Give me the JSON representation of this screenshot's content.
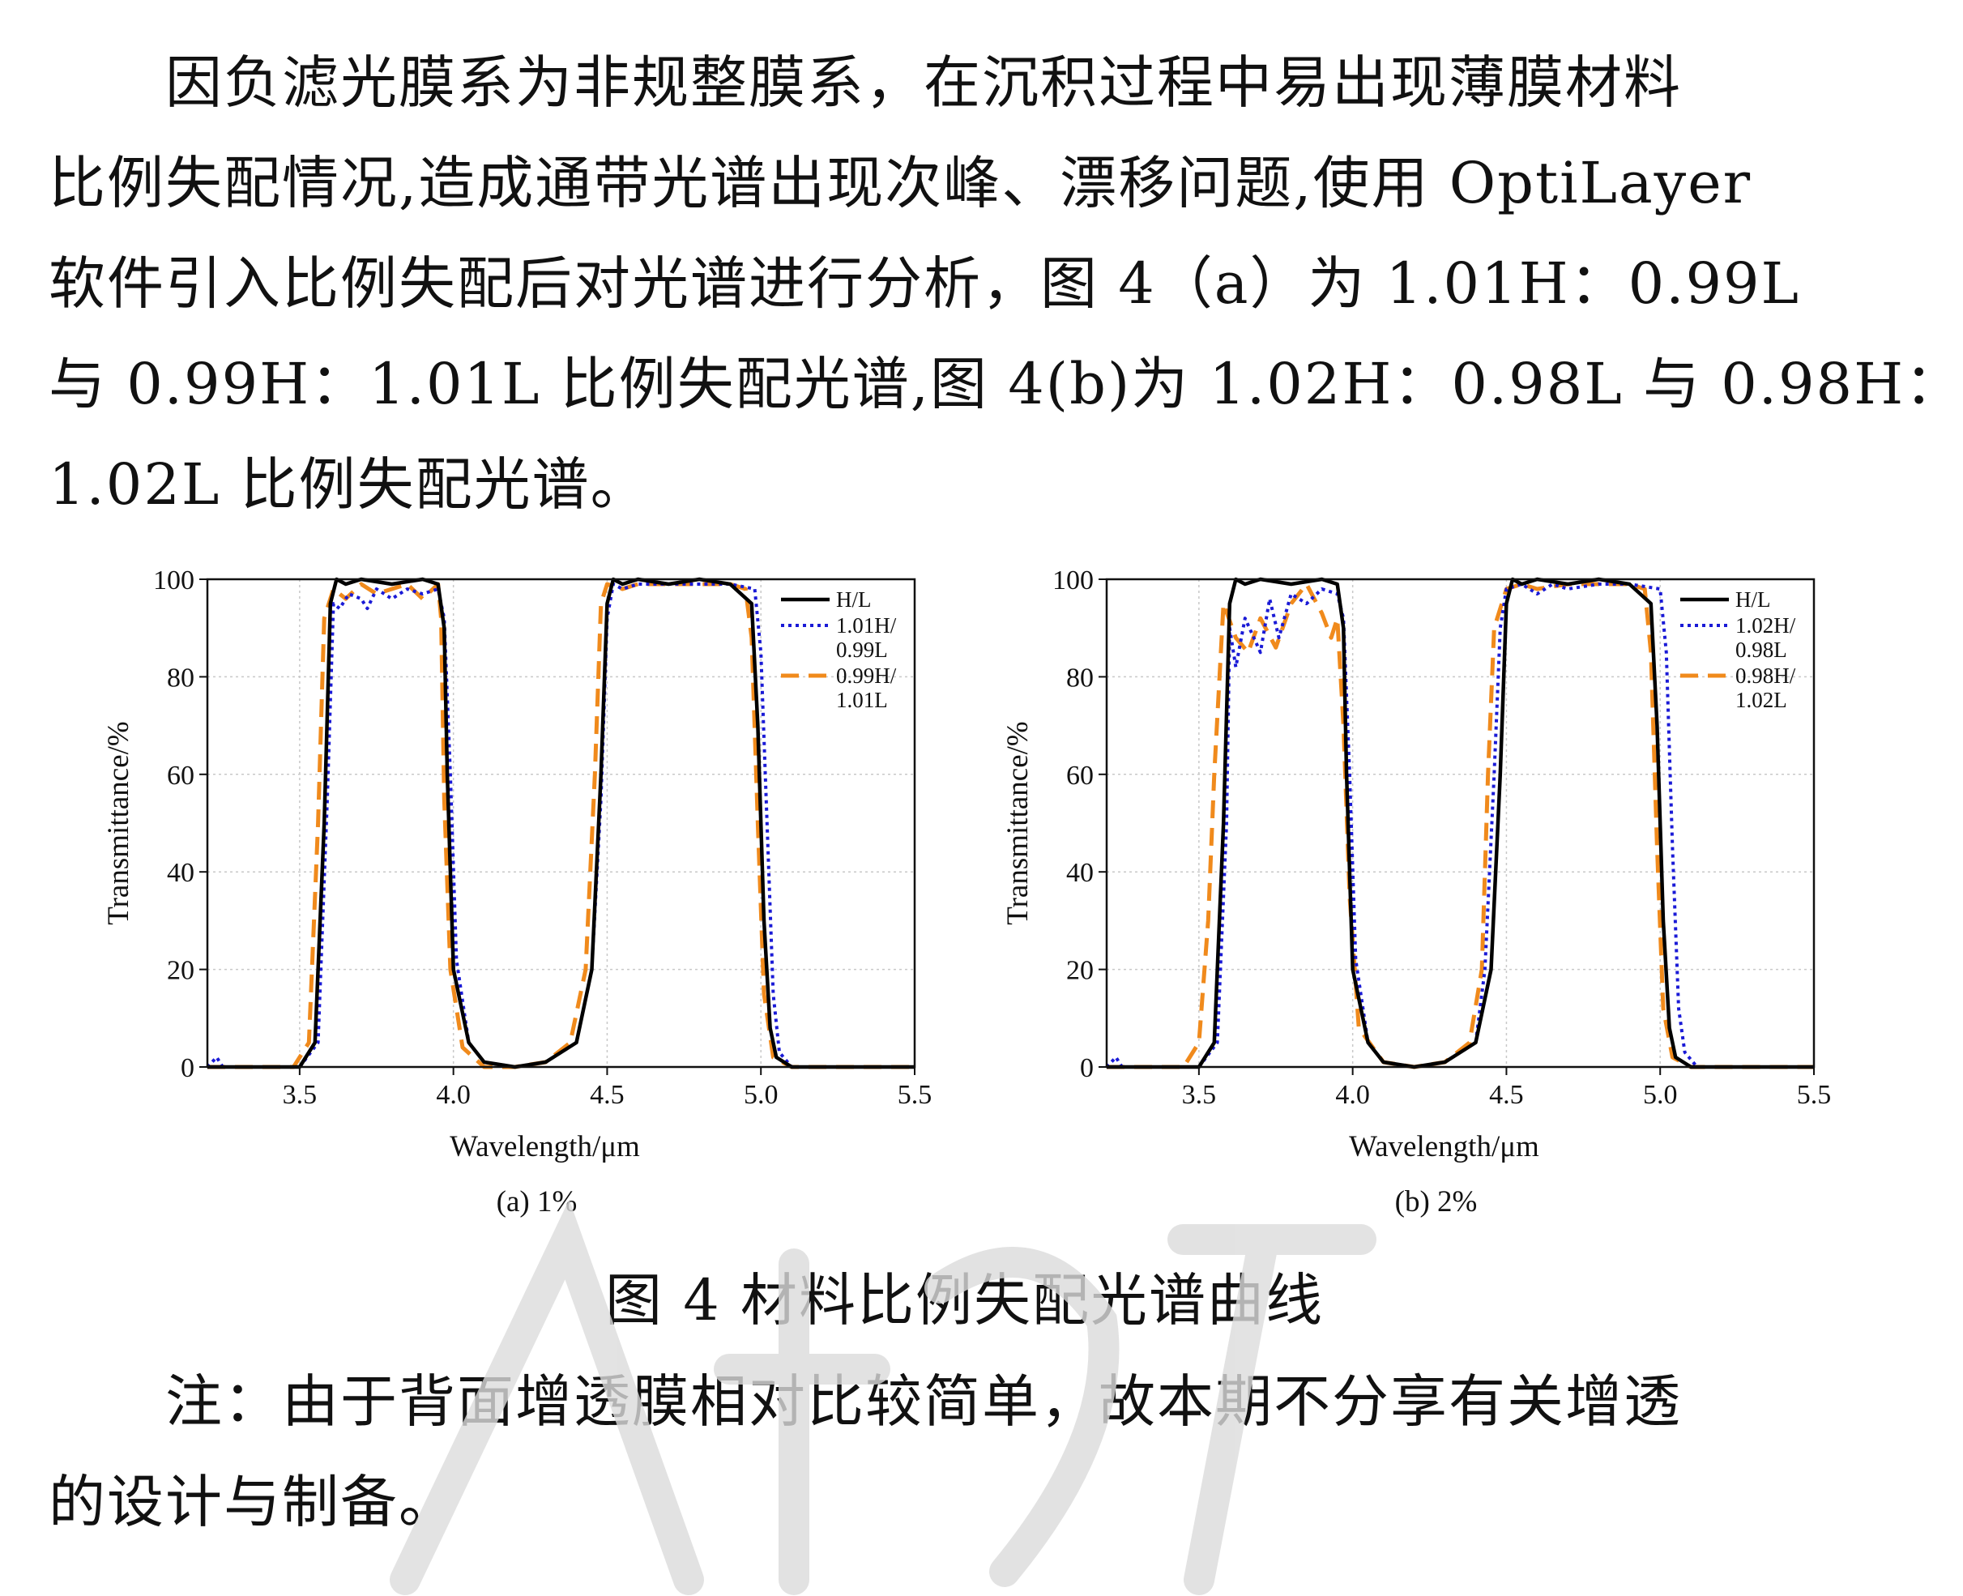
{
  "paragraph1": {
    "lines": [
      "因负滤光膜系为非规整膜系，在沉积过程中易出现薄膜材料",
      "比例失配情况,造成通带光谱出现次峰、漂移问题,使用 OptiLayer",
      "软件引入比例失配后对光谱进行分析，图 4（a）为 1.01H：0.99L",
      "与 0.99H：1.01L 比例失配光谱,图 4(b)为 1.02H：0.98L 与 0.98H：",
      "1.02L 比例失配光谱。"
    ]
  },
  "figure_caption": "图 4  材料比例失配光谱曲线",
  "paragraph2": {
    "lines": [
      "注：由于背面增透膜相对比较简单，故本期不分享有关增透",
      "的设计与制备。"
    ]
  },
  "colors": {
    "hl": "#000000",
    "dotted": "#1a1ad6",
    "dashed": "#f08a1c",
    "grid": "#c8c8c8"
  },
  "chart_data": [
    {
      "type": "line",
      "subtitle": "(a) 1%",
      "xlabel": "Wavelength/μm",
      "ylabel": "Transmittance/%",
      "xlim": [
        3.2,
        5.5
      ],
      "ylim": [
        0,
        100
      ],
      "xticks": [
        "3.5",
        "4.0",
        "4.5",
        "5.0",
        "5.5"
      ],
      "yticks": [
        "0",
        "20",
        "40",
        "60",
        "80",
        "100"
      ],
      "grid": true,
      "legend_position": "top-right",
      "series": [
        {
          "name": "H/L",
          "style": "solid",
          "x": [
            3.2,
            3.5,
            3.55,
            3.58,
            3.6,
            3.62,
            3.65,
            3.7,
            3.8,
            3.9,
            3.95,
            3.97,
            3.98,
            4.0,
            4.05,
            4.1,
            4.2,
            4.3,
            4.4,
            4.45,
            4.48,
            4.5,
            4.52,
            4.55,
            4.6,
            4.7,
            4.8,
            4.9,
            4.97,
            4.99,
            5.01,
            5.03,
            5.05,
            5.1,
            5.2,
            5.3,
            5.5
          ],
          "y": [
            0,
            0,
            5,
            50,
            95,
            100,
            99,
            100,
            99,
            100,
            99,
            90,
            60,
            20,
            5,
            1,
            0,
            1,
            5,
            20,
            60,
            95,
            100,
            99,
            100,
            99,
            100,
            99,
            95,
            70,
            30,
            8,
            2,
            0,
            0,
            0,
            0
          ]
        },
        {
          "name": "1.01H/\n0.99L",
          "style": "dotted",
          "x": [
            3.2,
            3.23,
            3.25,
            3.5,
            3.56,
            3.59,
            3.61,
            3.63,
            3.66,
            3.7,
            3.72,
            3.75,
            3.8,
            3.85,
            3.9,
            3.95,
            3.97,
            3.99,
            4.01,
            4.05,
            4.1,
            4.2,
            4.3,
            4.4,
            4.45,
            4.48,
            4.5,
            4.52,
            4.55,
            4.6,
            4.7,
            4.8,
            4.9,
            4.98,
            5.0,
            5.02,
            5.04,
            5.06,
            5.1,
            5.2,
            5.3,
            5.5
          ],
          "y": [
            0,
            2,
            0,
            0,
            5,
            55,
            95,
            94,
            97,
            96,
            94,
            98,
            96,
            98,
            97,
            98,
            92,
            60,
            22,
            5,
            1,
            0,
            1,
            5,
            20,
            55,
            92,
            99,
            98,
            99,
            99,
            99,
            99,
            98,
            85,
            50,
            15,
            3,
            0,
            0,
            0,
            0
          ]
        },
        {
          "name": "0.99H/\n1.01L",
          "style": "dashed",
          "x": [
            3.2,
            3.48,
            3.53,
            3.56,
            3.58,
            3.61,
            3.65,
            3.7,
            3.75,
            3.8,
            3.85,
            3.9,
            3.95,
            3.96,
            3.97,
            3.99,
            4.03,
            4.1,
            4.2,
            4.3,
            4.38,
            4.43,
            4.46,
            4.48,
            4.5,
            4.55,
            4.6,
            4.7,
            4.8,
            4.9,
            4.95,
            4.97,
            4.99,
            5.01,
            5.04,
            5.1,
            5.3,
            5.5
          ],
          "y": [
            0,
            0,
            5,
            50,
            92,
            98,
            96,
            99,
            97,
            98,
            99,
            96,
            99,
            92,
            55,
            20,
            4,
            0,
            0,
            1,
            5,
            20,
            60,
            95,
            99,
            98,
            99,
            99,
            99,
            99,
            98,
            88,
            50,
            15,
            2,
            0,
            0,
            0
          ]
        }
      ]
    },
    {
      "type": "line",
      "subtitle": "(b) 2%",
      "xlabel": "Wavelength/μm",
      "ylabel": "Transmittance/%",
      "xlim": [
        3.2,
        5.5
      ],
      "ylim": [
        0,
        100
      ],
      "xticks": [
        "3.5",
        "4.0",
        "4.5",
        "5.0",
        "5.5"
      ],
      "yticks": [
        "0",
        "20",
        "40",
        "60",
        "80",
        "100"
      ],
      "grid": true,
      "legend_position": "top-right",
      "series": [
        {
          "name": "H/L",
          "style": "solid",
          "x": [
            3.2,
            3.5,
            3.55,
            3.58,
            3.6,
            3.62,
            3.65,
            3.7,
            3.8,
            3.9,
            3.95,
            3.97,
            3.98,
            4.0,
            4.05,
            4.1,
            4.2,
            4.3,
            4.4,
            4.45,
            4.48,
            4.5,
            4.52,
            4.55,
            4.6,
            4.7,
            4.8,
            4.9,
            4.97,
            4.99,
            5.01,
            5.03,
            5.05,
            5.1,
            5.2,
            5.3,
            5.5
          ],
          "y": [
            0,
            0,
            5,
            50,
            95,
            100,
            99,
            100,
            99,
            100,
            99,
            90,
            60,
            20,
            5,
            1,
            0,
            1,
            5,
            20,
            60,
            95,
            100,
            99,
            100,
            99,
            100,
            99,
            95,
            70,
            30,
            8,
            2,
            0,
            0,
            0,
            0
          ]
        },
        {
          "name": "1.02H/\n0.98L",
          "style": "dotted",
          "x": [
            3.2,
            3.23,
            3.25,
            3.5,
            3.56,
            3.59,
            3.6,
            3.62,
            3.65,
            3.7,
            3.73,
            3.76,
            3.8,
            3.85,
            3.9,
            3.95,
            3.97,
            3.99,
            4.01,
            4.05,
            4.1,
            4.2,
            4.3,
            4.4,
            4.43,
            4.46,
            4.48,
            4.5,
            4.55,
            4.6,
            4.65,
            4.7,
            4.8,
            4.9,
            5.0,
            5.02,
            5.04,
            5.06,
            5.08,
            5.12,
            5.2,
            5.5
          ],
          "y": [
            0,
            2,
            0,
            0,
            5,
            50,
            90,
            82,
            92,
            85,
            96,
            88,
            97,
            95,
            98,
            97,
            92,
            60,
            22,
            5,
            1,
            0,
            1,
            5,
            20,
            60,
            90,
            98,
            99,
            97,
            99,
            98,
            99,
            99,
            98,
            85,
            45,
            12,
            3,
            0,
            0,
            0
          ]
        },
        {
          "name": "0.98H/\n1.02L",
          "style": "dashed",
          "x": [
            3.2,
            3.45,
            3.5,
            3.53,
            3.55,
            3.58,
            3.62,
            3.66,
            3.7,
            3.75,
            3.8,
            3.85,
            3.9,
            3.93,
            3.95,
            3.97,
            3.99,
            4.02,
            4.1,
            4.2,
            4.3,
            4.38,
            4.42,
            4.44,
            4.46,
            4.5,
            4.55,
            4.6,
            4.7,
            4.8,
            4.9,
            4.95,
            4.97,
            4.99,
            5.01,
            5.04,
            5.1,
            5.3,
            5.5
          ],
          "y": [
            0,
            0,
            5,
            30,
            60,
            95,
            88,
            85,
            92,
            86,
            95,
            99,
            93,
            88,
            92,
            70,
            35,
            8,
            1,
            0,
            1,
            5,
            20,
            60,
            90,
            98,
            99,
            98,
            99,
            99,
            99,
            98,
            85,
            45,
            12,
            2,
            0,
            0,
            0
          ]
        }
      ]
    }
  ]
}
